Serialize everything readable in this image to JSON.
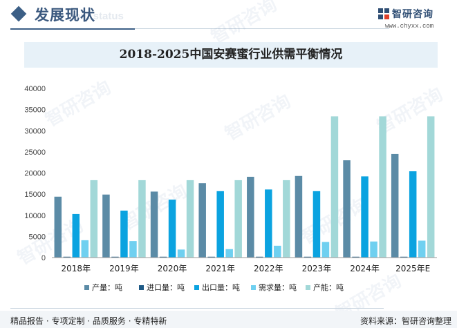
{
  "header": {
    "title": "发展现状",
    "subtitle": "ent status"
  },
  "brand": {
    "name": "智研咨询",
    "url": "www.chyxx.com"
  },
  "watermark": "智研咨询",
  "footer": {
    "left": "精品报告 · 专项定制 · 品质服务 · 专精特新",
    "right": "资料来源：智研咨询整理"
  },
  "colors": {
    "header_accent": "#3c5f86",
    "banner_bg": "#e7f1f8"
  },
  "chart_data": {
    "type": "bar",
    "title": "2018-2025中国安赛蜜行业供需平衡情况",
    "categories": [
      "2018年",
      "2019年",
      "2020年",
      "2021年",
      "2022年",
      "2023年",
      "2024年",
      "2025年E"
    ],
    "ylim": [
      0,
      40000
    ],
    "yticks": [
      0,
      5000,
      10000,
      15000,
      20000,
      25000,
      30000,
      35000,
      40000
    ],
    "grid": false,
    "legend_position": "bottom",
    "series": [
      {
        "name": "产量：吨",
        "color": "#5b8ba6",
        "values": [
          14400,
          14900,
          15600,
          17600,
          19100,
          19300,
          23000,
          24500
        ]
      },
      {
        "name": "进口量：吨",
        "color": "#1e5a86",
        "values": [
          200,
          200,
          200,
          200,
          200,
          200,
          200,
          200
        ]
      },
      {
        "name": "出口量：吨",
        "color": "#0ba3e0",
        "values": [
          10300,
          11100,
          13700,
          15700,
          16100,
          15700,
          19200,
          20400
        ]
      },
      {
        "name": "需求量：吨",
        "color": "#6fd0f0",
        "values": [
          4100,
          3900,
          1900,
          2000,
          2800,
          3700,
          3800,
          4000
        ]
      },
      {
        "name": "产能：吨",
        "color": "#a2d8d8",
        "values": [
          18300,
          18300,
          18300,
          18300,
          18300,
          33400,
          33400,
          33400
        ]
      }
    ]
  }
}
